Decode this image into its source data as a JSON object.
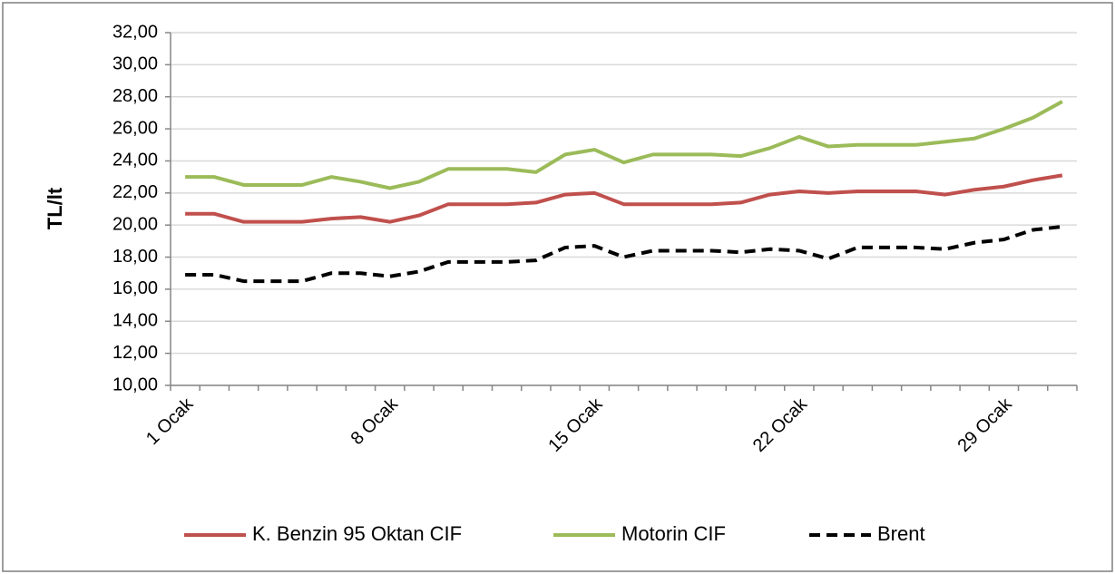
{
  "chart_data": {
    "type": "line",
    "y_label": "TL/lt",
    "categories": [
      "1 Ocak",
      null,
      null,
      null,
      null,
      null,
      null,
      "8 Ocak",
      null,
      null,
      null,
      null,
      null,
      null,
      "15 Ocak",
      null,
      null,
      null,
      null,
      null,
      null,
      "22 Ocak",
      null,
      null,
      null,
      null,
      null,
      null,
      "29 Ocak",
      null,
      null
    ],
    "series": [
      {
        "name": "K. Benzin 95 Oktan CIF",
        "color": "#c0504d",
        "dashed": false,
        "values": [
          20.7,
          20.7,
          20.2,
          20.2,
          20.2,
          20.4,
          20.5,
          20.2,
          20.6,
          21.3,
          21.3,
          21.3,
          21.4,
          21.9,
          22.0,
          21.3,
          21.3,
          21.3,
          21.3,
          21.4,
          21.9,
          22.1,
          22.0,
          22.1,
          22.1,
          22.1,
          21.9,
          22.2,
          22.4,
          22.8,
          23.1
        ]
      },
      {
        "name": "Motorin CIF",
        "color": "#9bbb59",
        "dashed": false,
        "values": [
          23.0,
          23.0,
          22.5,
          22.5,
          22.5,
          23.0,
          22.7,
          22.3,
          22.7,
          23.5,
          23.5,
          23.5,
          23.3,
          24.4,
          24.7,
          23.9,
          24.4,
          24.4,
          24.4,
          24.3,
          24.8,
          25.5,
          24.9,
          25.0,
          25.0,
          25.0,
          25.2,
          25.4,
          26.0,
          26.7,
          27.7
        ]
      },
      {
        "name": "Brent",
        "color": "#000000",
        "dashed": true,
        "values": [
          16.9,
          16.9,
          16.5,
          16.5,
          16.5,
          17.0,
          17.0,
          16.8,
          17.1,
          17.7,
          17.7,
          17.7,
          17.8,
          18.6,
          18.7,
          18.0,
          18.4,
          18.4,
          18.4,
          18.3,
          18.5,
          18.4,
          17.9,
          18.6,
          18.6,
          18.6,
          18.5,
          18.9,
          19.1,
          19.7,
          19.9
        ]
      }
    ],
    "ylim": [
      10,
      32
    ],
    "yticks": [
      {
        "value": 10,
        "label": "10,00"
      },
      {
        "value": 12,
        "label": "12,00"
      },
      {
        "value": 14,
        "label": "14,00"
      },
      {
        "value": 16,
        "label": "16,00"
      },
      {
        "value": 18,
        "label": "18,00"
      },
      {
        "value": 20,
        "label": "20,00"
      },
      {
        "value": 22,
        "label": "22,00"
      },
      {
        "value": 24,
        "label": "24,00"
      },
      {
        "value": 26,
        "label": "26,00"
      },
      {
        "value": 28,
        "label": "28,00"
      },
      {
        "value": 30,
        "label": "30,00"
      },
      {
        "value": 32,
        "label": "32,00"
      }
    ],
    "grid": true,
    "legend": "bottom"
  }
}
